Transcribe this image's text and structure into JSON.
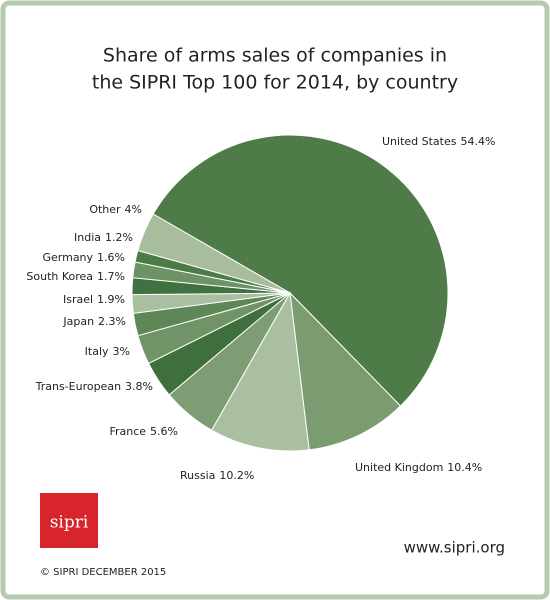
{
  "chart_data": {
    "type": "pie",
    "title": [
      "Share of arms sales of companies in",
      "the SIPRI Top 100 for 2014, by country"
    ],
    "categories": [
      "United States",
      "United Kingdom",
      "Russia",
      "France",
      "Trans-European",
      "Italy",
      "Japan",
      "Israel",
      "South Korea",
      "Germany",
      "India",
      "Other"
    ],
    "values": [
      54.4,
      10.4,
      10.2,
      5.6,
      3.8,
      3,
      2.3,
      1.9,
      1.7,
      1.6,
      1.2,
      4
    ],
    "value_labels": [
      "54.4%",
      "10.4%",
      "10.2%",
      "5.6%",
      "3.8%",
      "3%",
      "2.3%",
      "1.9%",
      "1.7%",
      "1.6%",
      "1.2%",
      "4%"
    ],
    "colors": [
      "#4f7b48",
      "#7b9b70",
      "#aabfa0",
      "#7e9d74",
      "#3f6f3c",
      "#709367",
      "#5d8756",
      "#a9c0a0",
      "#407141",
      "#6d9263",
      "#4b7b46",
      "#a8bd9d"
    ],
    "logo": "sipri",
    "website": "www.sipri.org",
    "credit": "© SIPRI DECEMBER 2015"
  }
}
